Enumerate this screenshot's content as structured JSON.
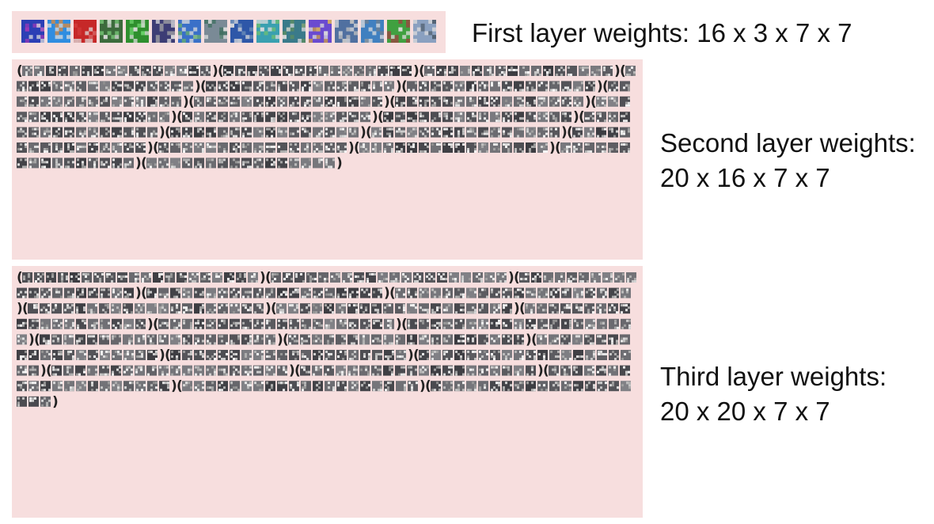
{
  "figure": {
    "panel_background": "#f7dede",
    "first_layer": {
      "label": "First layer weights: 16 x 3 x 7 x 7",
      "filter_count": 16,
      "filter_colors": [
        [
          "#2b3fb5",
          "#9b3ab8"
        ],
        [
          "#2f8de0",
          "#e08a3a"
        ],
        [
          "#c62828",
          "#d23a3a"
        ],
        [
          "#3c6b3c",
          "#7ac97a"
        ],
        [
          "#2e8f2e",
          "#6bd36b"
        ],
        [
          "#3d3d75",
          "#a6a6a6"
        ],
        [
          "#3a70c8",
          "#6bb26b"
        ],
        [
          "#7a8a96",
          "#3f6f5f"
        ],
        [
          "#2e57a8",
          "#6f8fb8"
        ],
        [
          "#3aa0b0",
          "#70c070"
        ],
        [
          "#3a7a8a",
          "#5f8f5f"
        ],
        [
          "#6a4ad0",
          "#d0a040"
        ],
        [
          "#5070a0",
          "#c0c0c0"
        ],
        [
          "#4080c0",
          "#708090"
        ],
        [
          "#40a040",
          "#a04040"
        ],
        [
          "#8aa0c0",
          "#506070"
        ]
      ]
    },
    "second_layer": {
      "label_line1": "Second layer weights:",
      "label_line2": "20 x 16 x 7 x 7",
      "groups": 20,
      "filters_per_group": 16
    },
    "third_layer": {
      "label_line1": "Third layer weights:",
      "label_line2": "20 x 20 x 7 x 7",
      "groups": 20,
      "filters_per_group": 20
    }
  }
}
